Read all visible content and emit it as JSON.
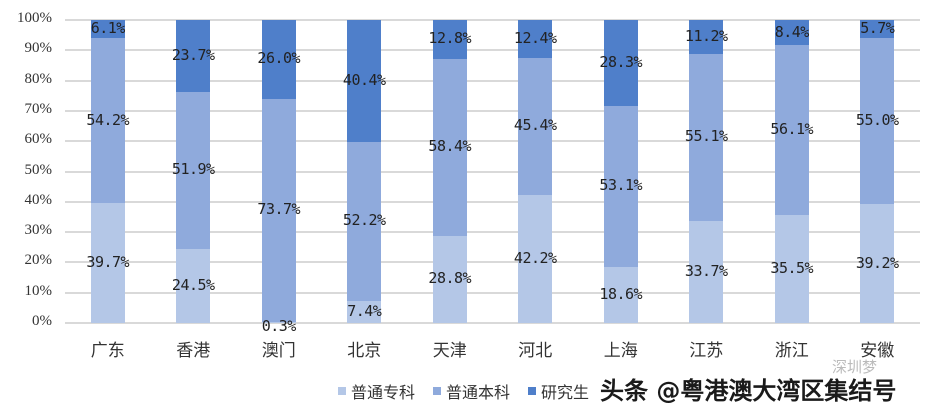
{
  "chart_data": {
    "type": "bar",
    "stacked": true,
    "percent_stacked": true,
    "title": "",
    "xlabel": "",
    "ylabel": "",
    "ylim": [
      0,
      100
    ],
    "yticks": [
      "0%",
      "10%",
      "20%",
      "30%",
      "40%",
      "50%",
      "60%",
      "70%",
      "80%",
      "90%",
      "100%"
    ],
    "grid": true,
    "legend_position": "bottom",
    "categories": [
      "广东",
      "香港",
      "澳门",
      "北京",
      "天津",
      "河北",
      "上海",
      "江苏",
      "浙江",
      "安徽"
    ],
    "series": [
      {
        "name": "普通专科",
        "color": "#b4c7e7",
        "values": [
          39.7,
          24.5,
          0.3,
          7.4,
          28.8,
          42.2,
          18.6,
          33.7,
          35.5,
          39.2
        ],
        "labels": [
          "39.7%",
          "24.5%",
          "0.3%",
          "7.4%",
          "28.8%",
          "42.2%",
          "18.6%",
          "33.7%",
          "35.5%",
          "39.2%"
        ]
      },
      {
        "name": "普通本科",
        "color": "#8faadc",
        "values": [
          54.2,
          51.9,
          73.7,
          52.2,
          58.4,
          45.4,
          53.1,
          55.1,
          56.1,
          55.0
        ],
        "labels": [
          "54.2%",
          "51.9%",
          "73.7%",
          "52.2%",
          "58.4%",
          "45.4%",
          "53.1%",
          "55.1%",
          "56.1%",
          "55.0%"
        ]
      },
      {
        "name": "研究生",
        "color": "#4f7fca",
        "values": [
          6.1,
          23.7,
          26.0,
          40.4,
          12.8,
          12.4,
          28.3,
          11.2,
          8.4,
          5.7
        ],
        "labels": [
          "6.1%",
          "23.7%",
          "26.0%",
          "40.4%",
          "12.8%",
          "12.4%",
          "28.3%",
          "11.2%",
          "8.4%",
          "5.7%"
        ]
      }
    ]
  },
  "legend": {
    "items": [
      {
        "label": "普通专科",
        "color": "#b4c7e7"
      },
      {
        "label": "普通本科",
        "color": "#8faadc"
      },
      {
        "label": "研究生",
        "color": "#4f7fca"
      }
    ]
  },
  "watermark": {
    "text": "头条 @粤港澳大湾区集结号",
    "secondary": "深圳梦"
  }
}
